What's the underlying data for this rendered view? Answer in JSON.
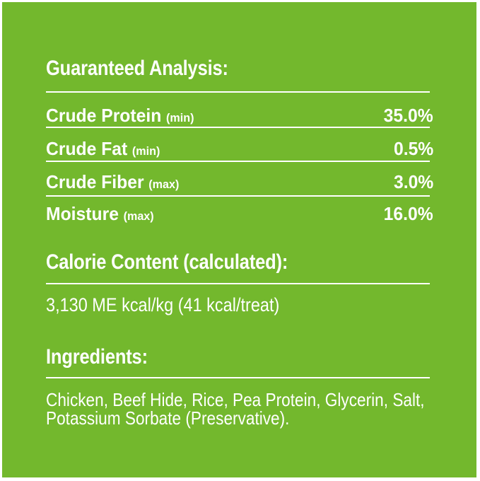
{
  "colors": {
    "label_green": "#73b82d",
    "text_white": "#ffffff"
  },
  "guaranteed_analysis": {
    "title": "Guaranteed Analysis:",
    "rows": [
      {
        "label": "Crude Protein",
        "qualifier": "(min)",
        "value": "35.0%"
      },
      {
        "label": "Crude Fat",
        "qualifier": "(min)",
        "value": "0.5%"
      },
      {
        "label": "Crude Fiber",
        "qualifier": "(max)",
        "value": "3.0%"
      },
      {
        "label": "Moisture",
        "qualifier": "(max)",
        "value": "16.0%"
      }
    ]
  },
  "calorie_content": {
    "title": "Calorie Content (calculated):",
    "value": "3,130 ME kcal/kg (41 kcal/treat)"
  },
  "ingredients": {
    "title": "Ingredients:",
    "lines": [
      "Chicken, Beef Hide, Rice, Pea Protein, Glycerin, Salt,",
      "Potassium Sorbate (Preservative)."
    ]
  }
}
